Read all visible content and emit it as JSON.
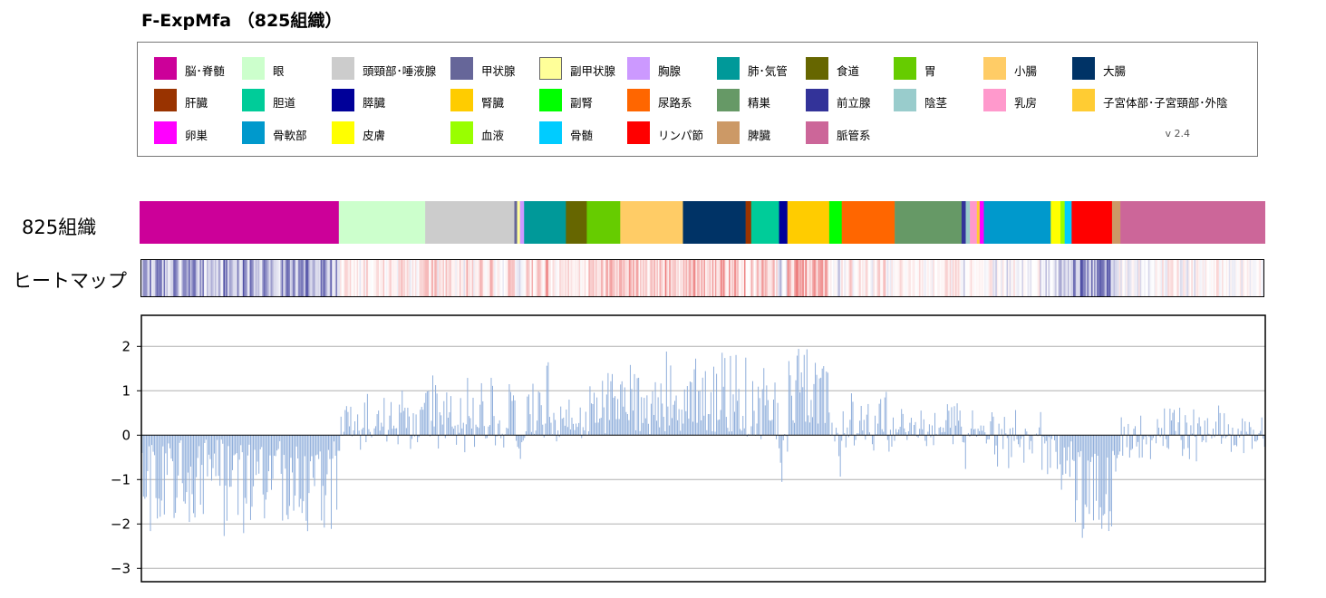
{
  "title": "F-ExpMfa （825組織）",
  "legend": {
    "version": "v 2.4",
    "items": [
      {
        "label": "脳･脊髄",
        "color": "#cc0099"
      },
      {
        "label": "眼",
        "color": "#ccffcc"
      },
      {
        "label": "頭頸部･唾液腺",
        "color": "#cccccc"
      },
      {
        "label": "甲状腺",
        "color": "#666699"
      },
      {
        "label": "副甲状腺",
        "color": "#ffff99"
      },
      {
        "label": "胸腺",
        "color": "#cc99ff"
      },
      {
        "label": "肺･気管",
        "color": "#009999"
      },
      {
        "label": "食道",
        "color": "#666600"
      },
      {
        "label": "胃",
        "color": "#66cc00"
      },
      {
        "label": "小腸",
        "color": "#ffcc66"
      },
      {
        "label": "大腸",
        "color": "#003366"
      },
      {
        "label": "肝臓",
        "color": "#993300"
      },
      {
        "label": "胆道",
        "color": "#00cc99"
      },
      {
        "label": "膵臓",
        "color": "#000099"
      },
      {
        "label": "腎臓",
        "color": "#ffcc00"
      },
      {
        "label": "副腎",
        "color": "#00ff00"
      },
      {
        "label": "尿路系",
        "color": "#ff6600"
      },
      {
        "label": "精巣",
        "color": "#669966"
      },
      {
        "label": "前立腺",
        "color": "#333399"
      },
      {
        "label": "陰茎",
        "color": "#99cccc"
      },
      {
        "label": "乳房",
        "color": "#ff99cc"
      },
      {
        "label": "子宮体部･子宮頸部･外陰",
        "color": "#ffcc33"
      },
      {
        "label": "卵巣",
        "color": "#ff00ff"
      },
      {
        "label": "骨軟部",
        "color": "#0099cc"
      },
      {
        "label": "皮膚",
        "color": "#ffff00"
      },
      {
        "label": "血液",
        "color": "#99ff00"
      },
      {
        "label": "骨髄",
        "color": "#00ccff"
      },
      {
        "label": "リンパ節",
        "color": "#ff0000"
      },
      {
        "label": "脾臓",
        "color": "#cc9966"
      },
      {
        "label": "脈管系",
        "color": "#cc6699"
      }
    ]
  },
  "row_labels": {
    "tissues": "825組織",
    "heatmap": "ヒートマップ"
  },
  "chart_data": {
    "type": "bar",
    "n_samples": 825,
    "ylim": [
      -3.3,
      2.7
    ],
    "yticks": [
      2,
      1,
      0,
      -1,
      -2,
      -3
    ],
    "ytick_labels": [
      "2",
      "1",
      "0",
      "−1",
      "−2",
      "−3"
    ],
    "grid": true,
    "bar_color": "#8faedb",
    "heatmap_colors": {
      "low": "#3a3a9a",
      "mid": "#ffffff",
      "high": "#e02020"
    },
    "group_order": [
      "脳･脊髄",
      "眼",
      "頭頸部･唾液腺",
      "甲状腺",
      "副甲状腺",
      "胸腺",
      "肺･気管",
      "食道",
      "胃",
      "小腸",
      "大腸",
      "肝臓",
      "胆道",
      "膵臓",
      "腎臓",
      "副腎",
      "尿路系",
      "精巣",
      "前立腺",
      "陰茎",
      "乳房",
      "子宮体部･子宮頸部･外陰",
      "卵巣",
      "骨軟部",
      "皮膚",
      "血液",
      "骨髄",
      "リンパ節",
      "脾臓",
      "脈管系"
    ],
    "group_counts": [
      143,
      62,
      64,
      2,
      2,
      3,
      30,
      15,
      24,
      45,
      45,
      4,
      20,
      6,
      30,
      9,
      38,
      48,
      3,
      3,
      5,
      2,
      3,
      48,
      7,
      3,
      5,
      29,
      6,
      104
    ],
    "group_value_profiles": [
      {
        "group": "脳･脊髄",
        "mean": -1.2,
        "spread": 0.9
      },
      {
        "group": "眼",
        "mean": 0.3,
        "spread": 0.6
      },
      {
        "group": "頭頸部･唾液腺",
        "mean": 0.4,
        "spread": 0.9
      },
      {
        "group": "甲状腺",
        "mean": -0.5,
        "spread": 0.2
      },
      {
        "group": "副甲状腺",
        "mean": -0.4,
        "spread": 0.2
      },
      {
        "group": "胸腺",
        "mean": -0.3,
        "spread": 0.3
      },
      {
        "group": "肺･気管",
        "mean": 0.7,
        "spread": 0.8
      },
      {
        "group": "食道",
        "mean": 0.4,
        "spread": 0.6
      },
      {
        "group": "胃",
        "mean": 0.8,
        "spread": 0.6
      },
      {
        "group": "小腸",
        "mean": 1.0,
        "spread": 0.8
      },
      {
        "group": "大腸",
        "mean": 0.9,
        "spread": 0.9
      },
      {
        "group": "肝臓",
        "mean": 0.2,
        "spread": 0.3
      },
      {
        "group": "胆道",
        "mean": 0.6,
        "spread": 0.8
      },
      {
        "group": "膵臓",
        "mean": -0.6,
        "spread": 0.7
      },
      {
        "group": "腎臓",
        "mean": 1.5,
        "spread": 0.7
      },
      {
        "group": "副腎",
        "mean": -0.3,
        "spread": 0.8
      },
      {
        "group": "尿路系",
        "mean": 0.3,
        "spread": 0.7
      },
      {
        "group": "精巣",
        "mean": 0.2,
        "spread": 0.5
      },
      {
        "group": "前立腺",
        "mean": -0.6,
        "spread": 0.3
      },
      {
        "group": "陰茎",
        "mean": 0.2,
        "spread": 0.3
      },
      {
        "group": "乳房",
        "mean": 0.3,
        "spread": 0.4
      },
      {
        "group": "子宮体部･子宮頸部･外陰",
        "mean": 0.2,
        "spread": 0.3
      },
      {
        "group": "卵巣",
        "mean": 0.2,
        "spread": 0.3
      },
      {
        "group": "骨軟部",
        "mean": -0.1,
        "spread": 0.7
      },
      {
        "group": "皮膚",
        "mean": -0.4,
        "spread": 0.5
      },
      {
        "group": "血液",
        "mean": -0.8,
        "spread": 0.4
      },
      {
        "group": "骨髄",
        "mean": -1.0,
        "spread": 0.5
      },
      {
        "group": "リンパ節",
        "mean": -1.9,
        "spread": 0.5
      },
      {
        "group": "脾臓",
        "mean": -0.5,
        "spread": 0.4
      },
      {
        "group": "脈管系",
        "mean": 0.0,
        "spread": 0.5
      }
    ]
  }
}
